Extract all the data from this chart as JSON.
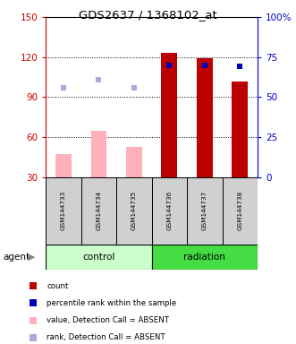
{
  "title": "GDS2637 / 1368102_at",
  "samples": [
    "GSM144733",
    "GSM144734",
    "GSM144735",
    "GSM144736",
    "GSM144737",
    "GSM144738"
  ],
  "ylim_left": [
    30,
    150
  ],
  "ylim_right": [
    0,
    100
  ],
  "yticks_left": [
    30,
    60,
    90,
    120,
    150
  ],
  "yticks_right": [
    0,
    25,
    50,
    75,
    100
  ],
  "ytick_labels_right": [
    "0",
    "25",
    "50",
    "75",
    "100%"
  ],
  "bar_values_absent": [
    47,
    65,
    53,
    0,
    0,
    0
  ],
  "bar_values_present": [
    0,
    0,
    0,
    123,
    119,
    102
  ],
  "rank_dots_absent": [
    97,
    103,
    97,
    0,
    0,
    0
  ],
  "rank_dots_present": [
    0,
    0,
    0,
    114,
    114,
    113
  ],
  "color_bar_absent": "#FFB0B8",
  "color_bar_present": "#BB0000",
  "color_rank_absent": "#AAAADD",
  "color_rank_present": "#0000BB",
  "color_group_control": "#CCFFCC",
  "color_group_radiation": "#44DD44",
  "color_left_axis": "#CC0000",
  "color_right_axis": "#0000CC",
  "legend_items": [
    {
      "label": "count",
      "color": "#BB0000"
    },
    {
      "label": "percentile rank within the sample",
      "color": "#0000BB"
    },
    {
      "label": "value, Detection Call = ABSENT",
      "color": "#FFB0B8"
    },
    {
      "label": "rank, Detection Call = ABSENT",
      "color": "#AAAADD"
    }
  ],
  "figsize": [
    3.31,
    3.84
  ],
  "dpi": 100
}
